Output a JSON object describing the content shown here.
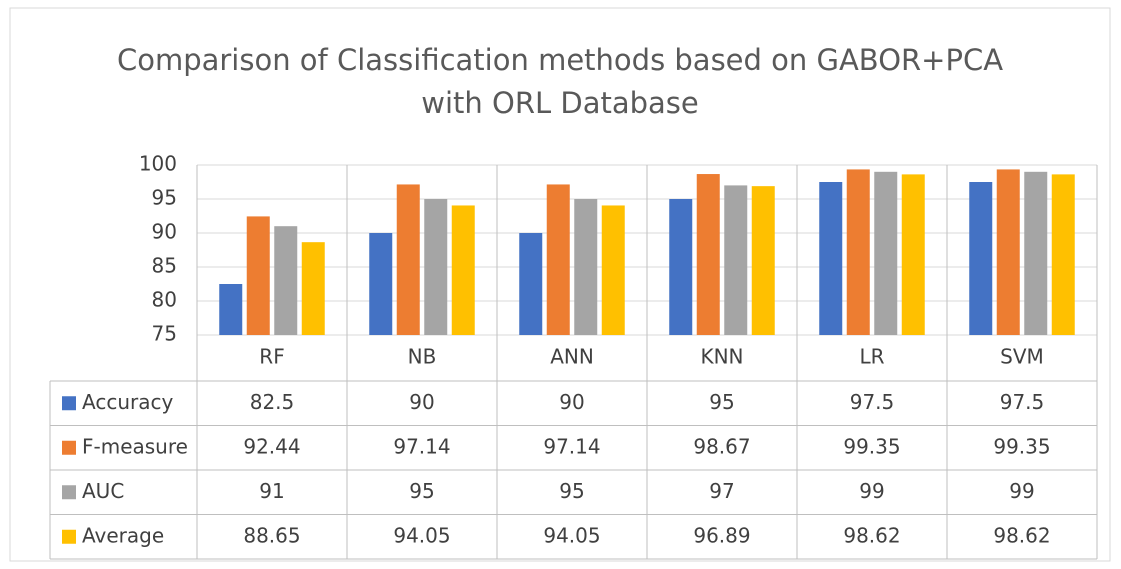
{
  "chart_data": {
    "type": "bar",
    "title": [
      "Comparison of Classification methods based on GABOR+PCA",
      "with ORL Database"
    ],
    "categories": [
      "RF",
      "NB",
      "ANN",
      "KNN",
      "LR",
      "SVM"
    ],
    "series": [
      {
        "name": "Accuracy",
        "color": "#4472c4",
        "values": [
          82.5,
          90,
          90,
          95,
          97.5,
          97.5
        ]
      },
      {
        "name": "F-measure",
        "color": "#ed7d31",
        "values": [
          92.44,
          97.14,
          97.14,
          98.67,
          99.35,
          99.35
        ]
      },
      {
        "name": "AUC",
        "color": "#a5a5a5",
        "values": [
          91,
          95,
          95,
          97,
          99,
          99
        ]
      },
      {
        "name": "Average",
        "color": "#ffc000",
        "values": [
          88.65,
          94.05,
          94.05,
          96.89,
          98.62,
          98.62
        ]
      }
    ],
    "ylim": [
      75,
      100
    ],
    "yticks": [
      75,
      80,
      85,
      90,
      95,
      100
    ],
    "grid": true
  }
}
